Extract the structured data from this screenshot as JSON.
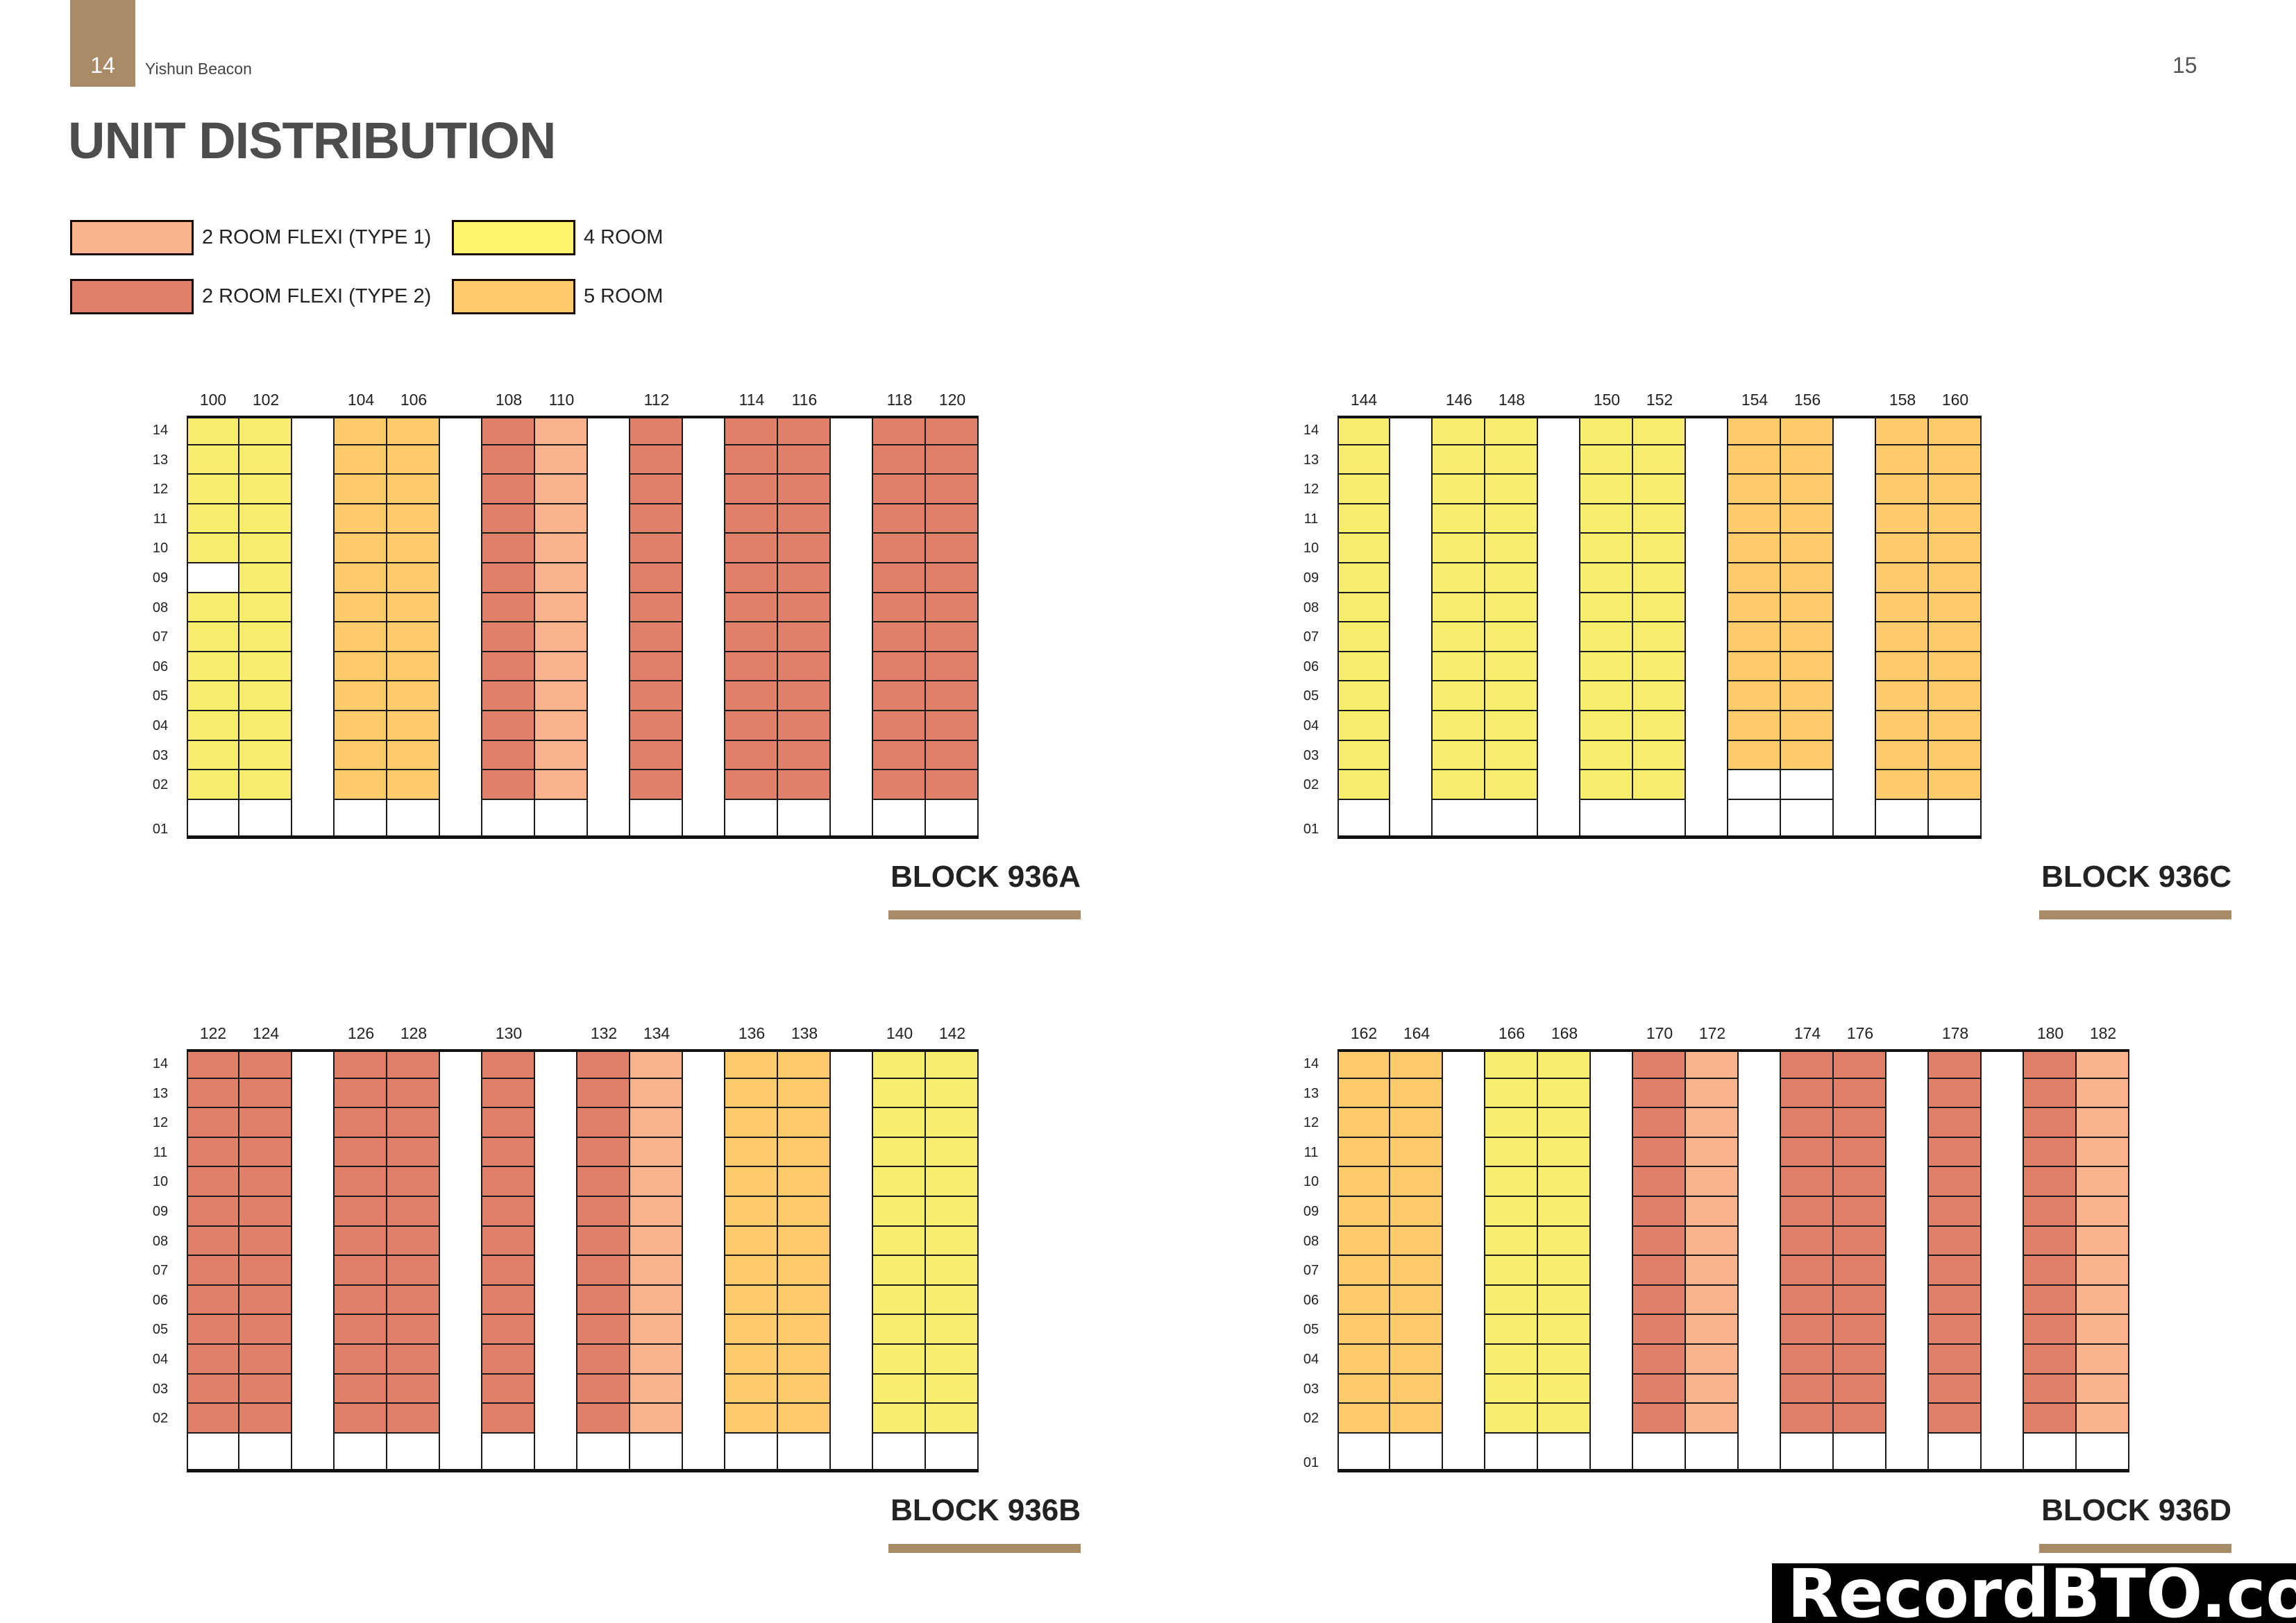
{
  "header": {
    "page_left": "14",
    "brand": "Yishun Beacon",
    "page_right": "15",
    "accent_color": "#A98B67"
  },
  "title": "UNIT DISTRIBUTION",
  "legend": [
    {
      "key": "t1",
      "label": "2 ROOM FLEXI (TYPE 1)",
      "color": "#F9B38D"
    },
    {
      "key": "t2",
      "label": "2 ROOM FLEXI (TYPE 2)",
      "color": "#E07F6A"
    },
    {
      "key": "4r",
      "label": "4 ROOM",
      "color": "#F7EE6E"
    },
    {
      "key": "5r",
      "label": "5 ROOM",
      "color": "#FDCB6A"
    }
  ],
  "floors": [
    "14",
    "13",
    "12",
    "11",
    "10",
    "09",
    "08",
    "07",
    "06",
    "05",
    "04",
    "03",
    "02"
  ],
  "ground_floor": "01",
  "blocks": [
    {
      "name": "BLOCK 936A",
      "show_ground_label": true,
      "groups": [
        {
          "units": [
            {
              "no": "100",
              "type": "4r"
            },
            {
              "no": "102",
              "type": "4r"
            }
          ]
        },
        {
          "units": [
            {
              "no": "104",
              "type": "5r"
            },
            {
              "no": "106",
              "type": "5r"
            }
          ]
        },
        {
          "units": [
            {
              "no": "108",
              "type": "t2"
            },
            {
              "no": "110",
              "type": "t1"
            }
          ]
        },
        {
          "units": [
            {
              "no": "112",
              "type": "t2"
            }
          ]
        },
        {
          "units": [
            {
              "no": "114",
              "type": "t2"
            },
            {
              "no": "116",
              "type": "t2"
            }
          ]
        },
        {
          "units": [
            {
              "no": "118",
              "type": "t2"
            },
            {
              "no": "120",
              "type": "t2"
            }
          ]
        }
      ],
      "vacant": [
        {
          "unit": "100",
          "floor": "09"
        }
      ]
    },
    {
      "name": "BLOCK 936C",
      "show_ground_label": true,
      "groups": [
        {
          "units": [
            {
              "no": "144",
              "type": "4r"
            }
          ]
        },
        {
          "units": [
            {
              "no": "146",
              "type": "4r"
            },
            {
              "no": "148",
              "type": "4r"
            }
          ],
          "ground_merged": true
        },
        {
          "units": [
            {
              "no": "150",
              "type": "4r"
            },
            {
              "no": "152",
              "type": "4r"
            }
          ],
          "ground_merged": true
        },
        {
          "units": [
            {
              "no": "154",
              "type": "5r"
            },
            {
              "no": "156",
              "type": "5r"
            }
          ]
        },
        {
          "units": [
            {
              "no": "158",
              "type": "5r"
            },
            {
              "no": "160",
              "type": "5r"
            }
          ]
        }
      ],
      "vacant": [
        {
          "unit": "154",
          "floor": "02"
        },
        {
          "unit": "156",
          "floor": "02"
        }
      ]
    },
    {
      "name": "BLOCK 936B",
      "show_ground_label": false,
      "groups": [
        {
          "units": [
            {
              "no": "122",
              "type": "t2"
            },
            {
              "no": "124",
              "type": "t2"
            }
          ]
        },
        {
          "units": [
            {
              "no": "126",
              "type": "t2"
            },
            {
              "no": "128",
              "type": "t2"
            }
          ]
        },
        {
          "units": [
            {
              "no": "130",
              "type": "t2"
            }
          ]
        },
        {
          "units": [
            {
              "no": "132",
              "type": "t2"
            },
            {
              "no": "134",
              "type": "t1"
            }
          ]
        },
        {
          "units": [
            {
              "no": "136",
              "type": "5r"
            },
            {
              "no": "138",
              "type": "5r"
            }
          ]
        },
        {
          "units": [
            {
              "no": "140",
              "type": "4r"
            },
            {
              "no": "142",
              "type": "4r"
            }
          ]
        }
      ],
      "vacant": []
    },
    {
      "name": "BLOCK 936D",
      "show_ground_label": true,
      "groups": [
        {
          "units": [
            {
              "no": "162",
              "type": "5r"
            },
            {
              "no": "164",
              "type": "5r"
            }
          ]
        },
        {
          "units": [
            {
              "no": "166",
              "type": "4r"
            },
            {
              "no": "168",
              "type": "4r"
            }
          ]
        },
        {
          "units": [
            {
              "no": "170",
              "type": "t2"
            },
            {
              "no": "172",
              "type": "t1"
            }
          ]
        },
        {
          "units": [
            {
              "no": "174",
              "type": "t2"
            },
            {
              "no": "176",
              "type": "t2"
            }
          ]
        },
        {
          "units": [
            {
              "no": "178",
              "type": "t2"
            }
          ]
        },
        {
          "units": [
            {
              "no": "180",
              "type": "t2"
            },
            {
              "no": "182",
              "type": "t1"
            }
          ]
        }
      ],
      "vacant": []
    }
  ],
  "watermark": "RecordBTO.com"
}
